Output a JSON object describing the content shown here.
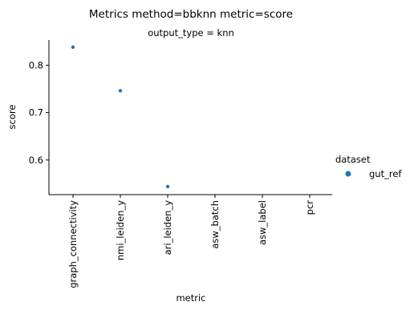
{
  "chart_data": {
    "type": "scatter",
    "title": "Metrics method=bbknn metric=score",
    "subtitle": "output_type = knn",
    "xlabel": "metric",
    "ylabel": "score",
    "categories": [
      "graph_connectivity",
      "nmi_leiden_y",
      "ari_leiden_y",
      "asw_batch",
      "asw_label",
      "pcr"
    ],
    "yticks": [
      0.6,
      0.7,
      0.8
    ],
    "ytick_labels": [
      "0.6",
      "0.7",
      "0.8"
    ],
    "ylim": [
      0.527,
      0.853
    ],
    "series": [
      {
        "name": "gut_ref",
        "color": "#1f77b4",
        "values": [
          0.838,
          0.746,
          0.544,
          null,
          null,
          null
        ]
      }
    ],
    "legend": {
      "title": "dataset",
      "position": "right",
      "entries": [
        "gut_ref"
      ]
    },
    "grid": false
  }
}
